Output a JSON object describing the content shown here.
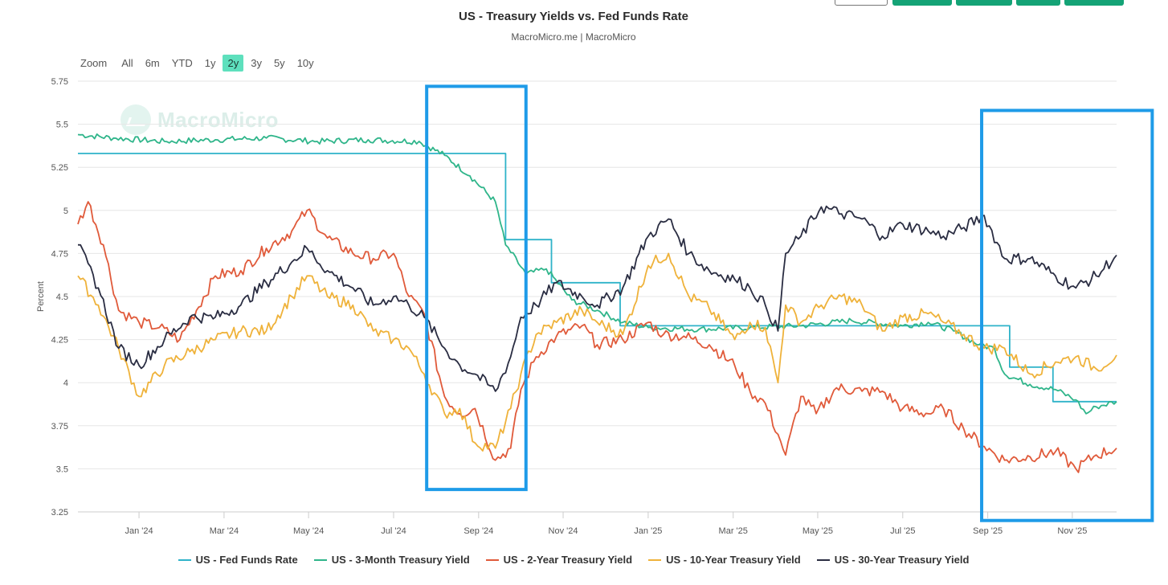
{
  "chart_data": {
    "type": "line",
    "title": "US - Treasury Yields vs. Fed Funds Rate",
    "subtitle": "MacroMicro.me | MacroMicro",
    "watermark": "MacroMicro",
    "ylabel": "Percent",
    "ylim": [
      3.25,
      5.75
    ],
    "yticks": [
      3.25,
      3.5,
      3.75,
      4,
      4.25,
      4.5,
      4.75,
      5,
      5.25,
      5.5,
      5.75
    ],
    "ytick_labels": [
      "3.25",
      "3.5",
      "3.75",
      "4",
      "4.25",
      "4.5",
      "4.75",
      "5",
      "5.25",
      "5.5",
      "5.75"
    ],
    "xlim": [
      2023.88,
      2025.92
    ],
    "xticks": [
      {
        "value": 2024.0,
        "label": "Jan '24"
      },
      {
        "value": 2024.167,
        "label": "Mar '24"
      },
      {
        "value": 2024.333,
        "label": "May '24"
      },
      {
        "value": 2024.5,
        "label": "Jul '24"
      },
      {
        "value": 2024.667,
        "label": "Sep '24"
      },
      {
        "value": 2024.833,
        "label": "Nov '24"
      },
      {
        "value": 2025.0,
        "label": "Jan '25"
      },
      {
        "value": 2025.167,
        "label": "Mar '25"
      },
      {
        "value": 2025.333,
        "label": "May '25"
      },
      {
        "value": 2025.5,
        "label": "Jul '25"
      },
      {
        "value": 2025.667,
        "label": "Sep '25"
      },
      {
        "value": 2025.833,
        "label": "Nov '25"
      }
    ],
    "series": [
      {
        "name": "US - Fed Funds Rate",
        "color": "#2fb3c9",
        "step": true,
        "x": [
          2023.88,
          2024.72,
          2024.72,
          2024.81,
          2024.81,
          2024.945,
          2024.945,
          2025.71,
          2025.71,
          2025.795,
          2025.795,
          2025.92
        ],
        "values": [
          5.33,
          5.33,
          4.83,
          4.83,
          4.58,
          4.58,
          4.33,
          4.33,
          4.09,
          4.09,
          3.89,
          3.89
        ]
      },
      {
        "name": "US - 3-Month Treasury Yield",
        "color": "#2fb58a",
        "x": [
          2023.88,
          2023.95,
          2024.05,
          2024.15,
          2024.25,
          2024.35,
          2024.45,
          2024.55,
          2024.6,
          2024.65,
          2024.7,
          2024.72,
          2024.76,
          2024.8,
          2024.85,
          2024.9,
          2024.95,
          2025.0,
          2025.1,
          2025.2,
          2025.3,
          2025.4,
          2025.5,
          2025.55,
          2025.6,
          2025.65,
          2025.68,
          2025.7,
          2025.75,
          2025.8,
          2025.84,
          2025.86,
          2025.88,
          2025.92
        ],
        "values": [
          5.44,
          5.42,
          5.4,
          5.41,
          5.42,
          5.4,
          5.41,
          5.4,
          5.32,
          5.2,
          5.05,
          4.8,
          4.63,
          4.66,
          4.48,
          4.42,
          4.35,
          4.32,
          4.31,
          4.32,
          4.33,
          4.36,
          4.33,
          4.35,
          4.3,
          4.22,
          4.2,
          4.05,
          3.99,
          3.96,
          3.9,
          3.82,
          3.86,
          3.89
        ]
      },
      {
        "name": "US - 2-Year Treasury Yield",
        "color": "#e05a3a",
        "x": [
          2023.88,
          2023.9,
          2023.93,
          2023.96,
          2024.0,
          2024.04,
          2024.08,
          2024.15,
          2024.2,
          2024.25,
          2024.3,
          2024.33,
          2024.37,
          2024.42,
          2024.46,
          2024.5,
          2024.53,
          2024.56,
          2024.6,
          2024.63,
          2024.66,
          2024.7,
          2024.73,
          2024.75,
          2024.78,
          2024.82,
          2024.87,
          2024.9,
          2024.95,
          2025.0,
          2025.03,
          2025.07,
          2025.12,
          2025.17,
          2025.2,
          2025.23,
          2025.255,
          2025.27,
          2025.3,
          2025.33,
          2025.37,
          2025.42,
          2025.46,
          2025.5,
          2025.55,
          2025.58,
          2025.62,
          2025.66,
          2025.7,
          2025.75,
          2025.8,
          2025.84,
          2025.88,
          2025.92
        ],
        "values": [
          4.92,
          5.05,
          4.8,
          4.42,
          4.35,
          4.32,
          4.25,
          4.62,
          4.65,
          4.78,
          4.88,
          5.0,
          4.84,
          4.75,
          4.72,
          4.75,
          4.5,
          4.4,
          3.92,
          3.82,
          3.85,
          3.55,
          3.62,
          3.96,
          4.15,
          4.27,
          4.33,
          4.22,
          4.25,
          4.35,
          4.28,
          4.27,
          4.22,
          4.1,
          3.95,
          3.88,
          3.7,
          3.58,
          3.92,
          3.82,
          3.97,
          3.95,
          3.95,
          3.85,
          3.82,
          3.85,
          3.73,
          3.63,
          3.55,
          3.57,
          3.6,
          3.5,
          3.58,
          3.62
        ]
      },
      {
        "name": "US - 10-Year Treasury Yield",
        "color": "#efb23a",
        "x": [
          2023.88,
          2023.92,
          2023.96,
          2024.0,
          2024.05,
          2024.1,
          2024.15,
          2024.2,
          2024.25,
          2024.3,
          2024.33,
          2024.37,
          2024.42,
          2024.46,
          2024.5,
          2024.53,
          2024.56,
          2024.6,
          2024.63,
          2024.66,
          2024.7,
          2024.73,
          2024.75,
          2024.78,
          2024.82,
          2024.87,
          2024.9,
          2024.95,
          2025.0,
          2025.04,
          2025.08,
          2025.12,
          2025.17,
          2025.2,
          2025.23,
          2025.255,
          2025.27,
          2025.3,
          2025.34,
          2025.38,
          2025.42,
          2025.46,
          2025.5,
          2025.55,
          2025.58,
          2025.62,
          2025.66,
          2025.7,
          2025.75,
          2025.8,
          2025.84,
          2025.88,
          2025.92
        ],
        "values": [
          4.62,
          4.45,
          4.2,
          3.92,
          4.1,
          4.18,
          4.25,
          4.3,
          4.3,
          4.5,
          4.62,
          4.5,
          4.45,
          4.3,
          4.25,
          4.2,
          4.05,
          3.82,
          3.85,
          3.65,
          3.62,
          3.85,
          4.05,
          4.28,
          4.35,
          4.42,
          4.35,
          4.28,
          4.68,
          4.75,
          4.5,
          4.43,
          4.25,
          4.35,
          4.32,
          4.0,
          4.45,
          4.35,
          4.45,
          4.5,
          4.45,
          4.3,
          4.38,
          4.4,
          4.35,
          4.28,
          4.2,
          4.2,
          4.05,
          4.12,
          4.15,
          4.08,
          4.16
        ]
      },
      {
        "name": "US - 30-Year Treasury Yield",
        "color": "#2a2d42",
        "x": [
          2023.88,
          2023.92,
          2023.96,
          2024.0,
          2024.05,
          2024.1,
          2024.15,
          2024.2,
          2024.25,
          2024.3,
          2024.33,
          2024.37,
          2024.42,
          2024.46,
          2024.5,
          2024.53,
          2024.56,
          2024.6,
          2024.63,
          2024.66,
          2024.7,
          2024.73,
          2024.75,
          2024.78,
          2024.82,
          2024.87,
          2024.9,
          2024.95,
          2025.0,
          2025.04,
          2025.08,
          2025.12,
          2025.17,
          2025.2,
          2025.23,
          2025.255,
          2025.27,
          2025.3,
          2025.34,
          2025.38,
          2025.42,
          2025.46,
          2025.5,
          2025.55,
          2025.58,
          2025.62,
          2025.66,
          2025.7,
          2025.75,
          2025.8,
          2025.84,
          2025.88,
          2025.92
        ],
        "values": [
          4.8,
          4.55,
          4.2,
          4.1,
          4.25,
          4.38,
          4.38,
          4.45,
          4.58,
          4.7,
          4.78,
          4.65,
          4.55,
          4.45,
          4.5,
          4.45,
          4.38,
          4.2,
          4.1,
          4.05,
          3.95,
          4.15,
          4.38,
          4.45,
          4.58,
          4.5,
          4.45,
          4.55,
          4.85,
          4.95,
          4.75,
          4.65,
          4.6,
          4.55,
          4.45,
          4.3,
          4.75,
          4.85,
          5.02,
          4.98,
          4.95,
          4.85,
          4.92,
          4.88,
          4.85,
          4.9,
          4.97,
          4.72,
          4.72,
          4.62,
          4.55,
          4.62,
          4.74
        ]
      }
    ],
    "annotations": [
      {
        "type": "highlight-box",
        "color": "#1e9be8",
        "x_from": 2024.565,
        "x_to": 2024.76,
        "y_from": 3.38,
        "y_to": 5.72
      },
      {
        "type": "highlight-box",
        "color": "#1e9be8",
        "x_from": 2025.655,
        "x_to": 2025.99,
        "y_from": 3.2,
        "y_to": 5.58
      }
    ]
  },
  "zoom": {
    "label": "Zoom",
    "options": [
      "All",
      "6m",
      "YTD",
      "1y",
      "2y",
      "3y",
      "5y",
      "10y"
    ],
    "selected": "2y"
  }
}
